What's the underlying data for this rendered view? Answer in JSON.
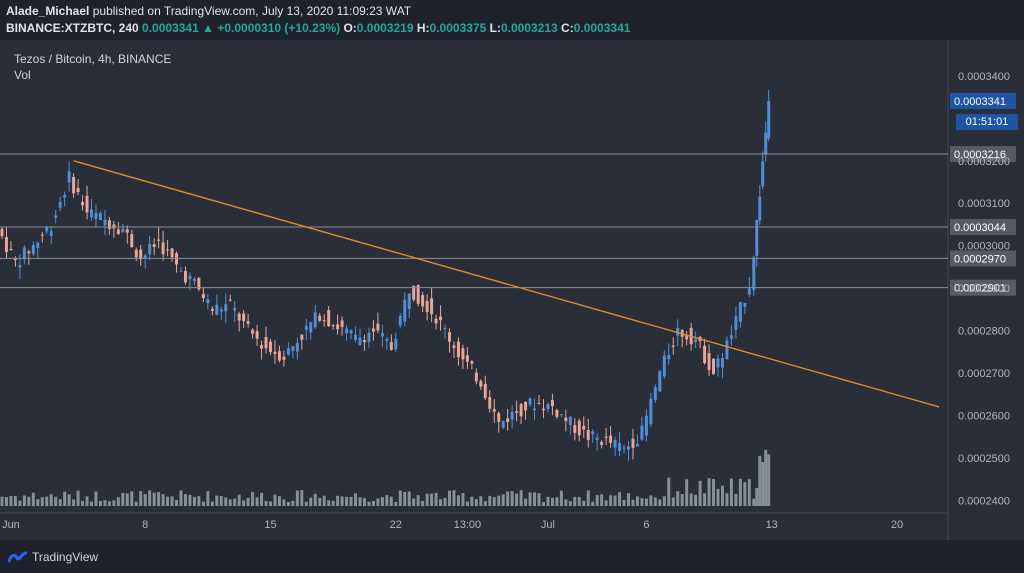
{
  "header": {
    "author": "Alade_Michael",
    "published_text": "published on TradingView.com, July 13, 2020 11:09:23 WAT",
    "symbol": "BINANCE:XTZBTC, 240",
    "last": "0.0003341",
    "arrow": "▲",
    "change": "+0.0000310 (+10.23%)",
    "o_label": "O:",
    "o_value": "0.0003219",
    "h_label": "H:",
    "h_value": "0.0003375",
    "l_label": "L:",
    "l_value": "0.0003213",
    "c_label": "C:",
    "c_value": "0.0003341"
  },
  "legend": {
    "title": "Tezos / Bitcoin, 4h, BINANCE",
    "volume_label": "Vol"
  },
  "timer": "01:51:01",
  "footer": {
    "brand": "TradingView"
  },
  "colors": {
    "background": "#2a2e39",
    "up_candle": "#4f8fd9",
    "down_candle": "#e8a796",
    "trendline": "#d88f2a",
    "volume": "#9aa0ac",
    "price_tag_blue": "#1e53a5",
    "price_tag_gray": "#555a66"
  },
  "chart_data": {
    "type": "candlestick",
    "title": "Tezos / Bitcoin, 4h, BINANCE",
    "x_ticks": [
      "Jun",
      "8",
      "15",
      "22",
      "13:00",
      "Jul",
      "6",
      "13",
      "20"
    ],
    "y_ticks": [
      "0.0003400",
      "0.0003300",
      "0.0003200",
      "0.0003100",
      "0.0003000",
      "0.0002900",
      "0.0002800",
      "0.0002700",
      "0.0002600",
      "0.0002500",
      "0.0002400"
    ],
    "y_range": [
      0.000237,
      0.000348
    ],
    "horizontal_levels": [
      {
        "value": 0.0003216,
        "label": "0.0003216"
      },
      {
        "value": 0.0003044,
        "label": "0.0003044"
      },
      {
        "value": 0.000297,
        "label": "0.0002970"
      },
      {
        "value": 0.0002901,
        "label": "0.0002901"
      }
    ],
    "current_price": {
      "value": 0.0003341,
      "label": "0.0003341"
    },
    "trendline": {
      "from": {
        "date": "Jun 4",
        "price": 0.00032
      },
      "to": {
        "date": "Jul 19",
        "price": 0.000262
      }
    },
    "price_path": [
      {
        "date": "May 31",
        "close": 0.000304
      },
      {
        "date": "Jun 1",
        "close": 0.000296
      },
      {
        "date": "Jun 2",
        "close": 0.0003
      },
      {
        "date": "Jun 3",
        "close": 0.000305
      },
      {
        "date": "Jun 4",
        "close": 0.000316
      },
      {
        "date": "Jun 5",
        "close": 0.000308
      },
      {
        "date": "Jun 6",
        "close": 0.000306
      },
      {
        "date": "Jun 7",
        "close": 0.000304
      },
      {
        "date": "Jun 8",
        "close": 0.000297
      },
      {
        "date": "Jun 9",
        "close": 0.000301
      },
      {
        "date": "Jun 10",
        "close": 0.000295
      },
      {
        "date": "Jun 11",
        "close": 0.000291
      },
      {
        "date": "Jun 12",
        "close": 0.000285
      },
      {
        "date": "Jun 13",
        "close": 0.000286
      },
      {
        "date": "Jun 14",
        "close": 0.00028
      },
      {
        "date": "Jun 15",
        "close": 0.000276
      },
      {
        "date": "Jun 16",
        "close": 0.000274
      },
      {
        "date": "Jun 17",
        "close": 0.000279
      },
      {
        "date": "Jun 18",
        "close": 0.000284
      },
      {
        "date": "Jun 19",
        "close": 0.000281
      },
      {
        "date": "Jun 20",
        "close": 0.000278
      },
      {
        "date": "Jun 21",
        "close": 0.00028
      },
      {
        "date": "Jun 22",
        "close": 0.000276
      },
      {
        "date": "Jun 23",
        "close": 0.00029
      },
      {
        "date": "Jun 24",
        "close": 0.000286
      },
      {
        "date": "Jun 25",
        "close": 0.00028
      },
      {
        "date": "Jun 26",
        "close": 0.000273
      },
      {
        "date": "Jun 27",
        "close": 0.000268
      },
      {
        "date": "Jun 28",
        "close": 0.000258
      },
      {
        "date": "Jun 29",
        "close": 0.000261
      },
      {
        "date": "Jun 30",
        "close": 0.000263
      },
      {
        "date": "Jul 1",
        "close": 0.000262
      },
      {
        "date": "Jul 2",
        "close": 0.000258
      },
      {
        "date": "Jul 3",
        "close": 0.000255
      },
      {
        "date": "Jul 4",
        "close": 0.000254
      },
      {
        "date": "Jul 5",
        "close": 0.000252
      },
      {
        "date": "Jul 6",
        "close": 0.000256
      },
      {
        "date": "Jul 7",
        "close": 0.00027
      },
      {
        "date": "Jul 8",
        "close": 0.00028
      },
      {
        "date": "Jul 9",
        "close": 0.000278
      },
      {
        "date": "Jul 10",
        "close": 0.00027
      },
      {
        "date": "Jul 11",
        "close": 0.000279
      },
      {
        "date": "Jul 12",
        "close": 0.000291
      },
      {
        "date": "Jul 13",
        "close": 0.0003341
      }
    ]
  }
}
